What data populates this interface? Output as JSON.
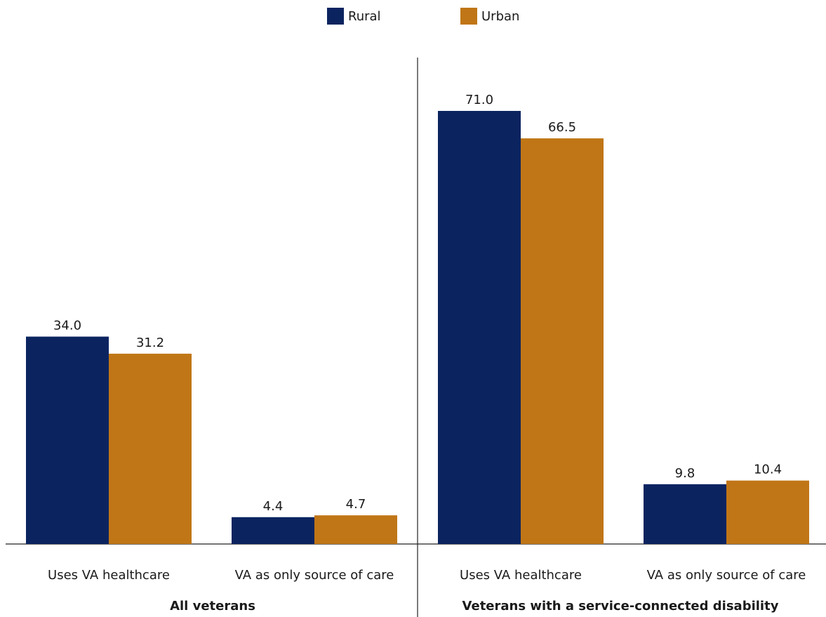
{
  "chart_data": {
    "type": "bar",
    "series": [
      {
        "name": "Rural",
        "color": "#0b2460"
      },
      {
        "name": "Urban",
        "color": "#c07616"
      }
    ],
    "groups": [
      {
        "label": "All veterans",
        "categories": [
          "Uses VA healthcare",
          "VA as only source of care"
        ],
        "values": {
          "Rural": [
            34.0,
            4.4
          ],
          "Urban": [
            31.2,
            4.7
          ]
        },
        "value_labels": {
          "Rural": [
            "34.0",
            "4.4"
          ],
          "Urban": [
            "31.2",
            "4.7"
          ]
        }
      },
      {
        "label": "Veterans with a service-connected disability",
        "categories": [
          "Uses VA healthcare",
          "VA as only source of care"
        ],
        "values": {
          "Rural": [
            71.0,
            9.8
          ],
          "Urban": [
            66.5,
            10.4
          ]
        },
        "value_labels": {
          "Rural": [
            "71.0",
            "9.8"
          ],
          "Urban": [
            "66.5",
            "10.4"
          ]
        }
      }
    ],
    "ylim": [
      0,
      100
    ],
    "grid": false,
    "legend": "top-center",
    "title": "",
    "xlabel": "",
    "ylabel": ""
  }
}
